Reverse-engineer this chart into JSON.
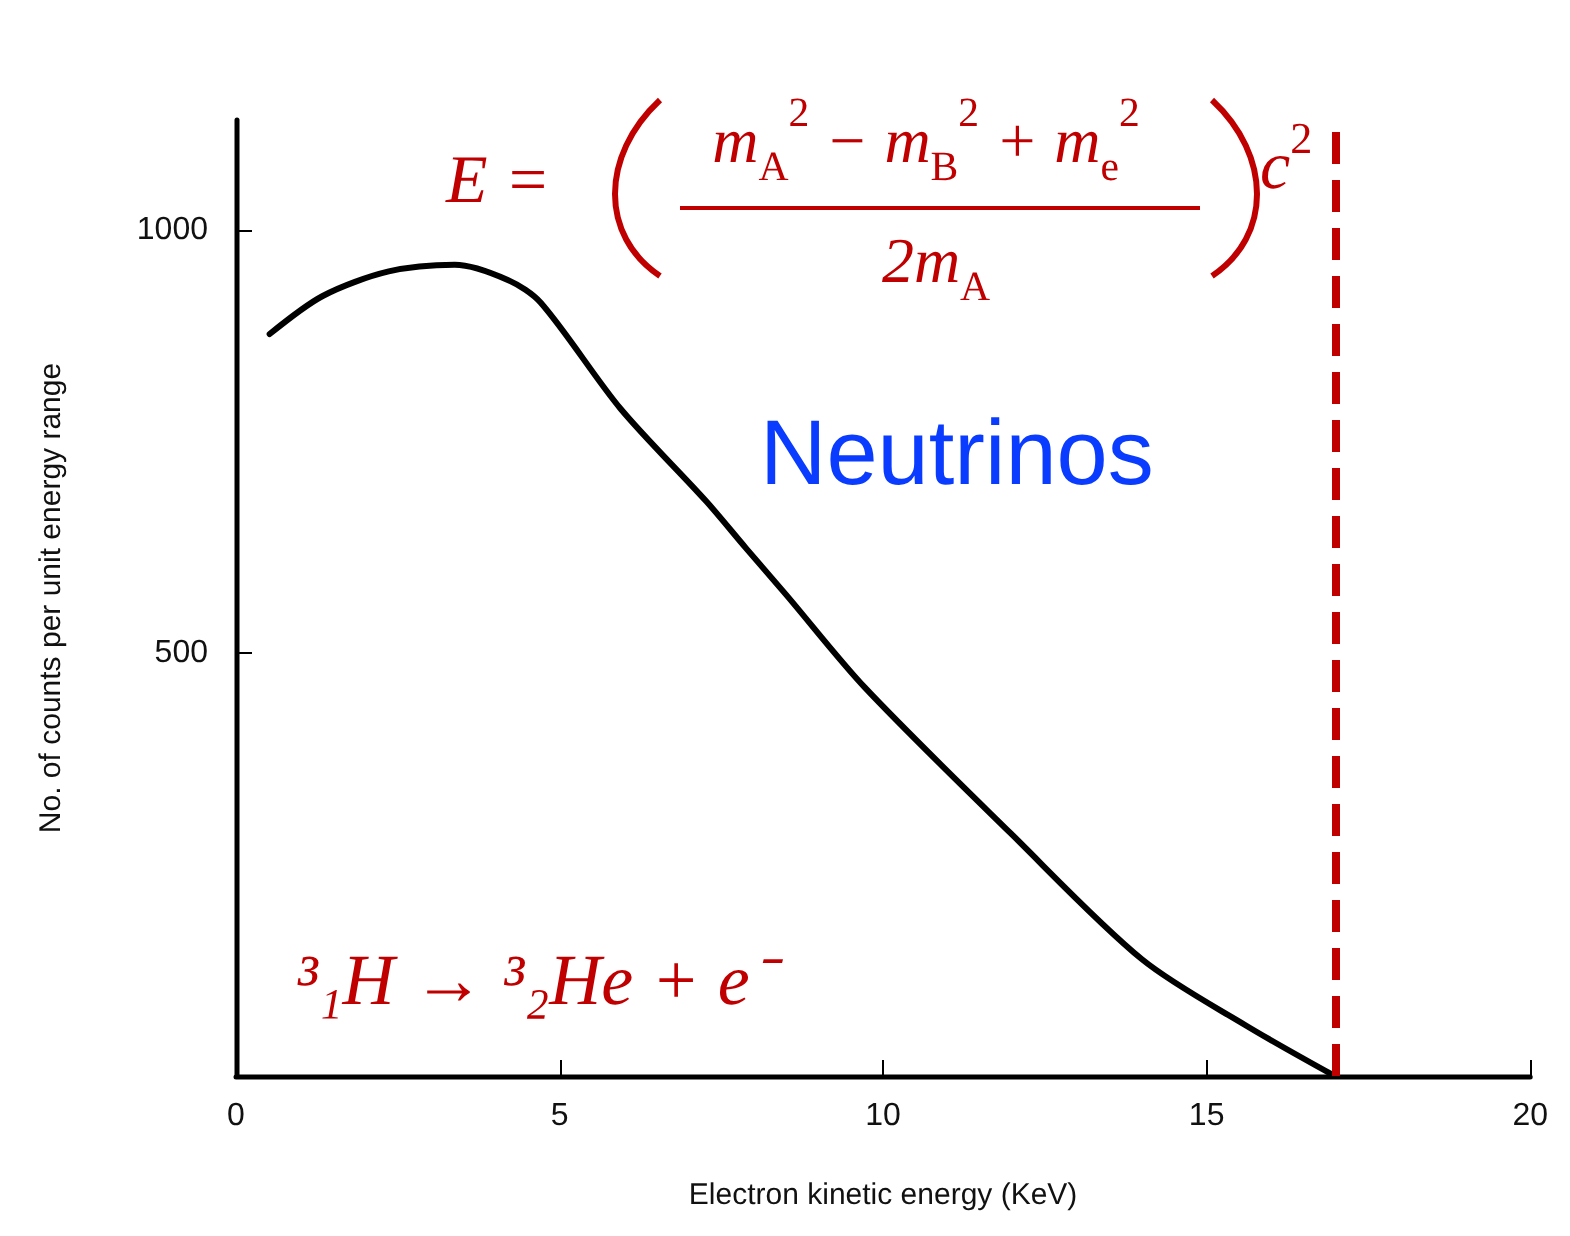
{
  "chart_data": {
    "type": "line",
    "xlabel": "Electron kinetic energy (KeV)",
    "ylabel": "No. of counts per unit energy range",
    "x": [
      0.52,
      1.34,
      2.36,
      3.38,
      4.2,
      4.71,
      5.94,
      7.27,
      7.88,
      8.5,
      9.72,
      11.97,
      14.0,
      15.6,
      16.98
    ],
    "series": [
      {
        "color": "#000000",
        "values": [
          877,
          922,
          951,
          959,
          941,
          914,
          789,
          679,
          624,
          569,
          459,
          287,
          138,
          60,
          0
        ]
      }
    ],
    "xlim": [
      0,
      20
    ],
    "xticks": [
      0,
      5,
      10,
      15,
      20
    ],
    "ylim": [
      0,
      1130
    ],
    "yticks": [
      500,
      1000
    ],
    "grid": false,
    "marker": "none",
    "line_style": "solid",
    "ref_lines": [
      {
        "axis": "x",
        "value": 17,
        "color": "#c00000",
        "line_style": "dashed"
      }
    ],
    "annotations": [
      "E =",
      "m$_{A}$$^{2}$ − m$_{B}$$^{2}$ + m$_{e}$$^{2}$",
      "2m$_{A}$",
      "c$^{2}$",
      "Neutrinos",
      "³₁H → ³₂He + e⁻"
    ]
  }
}
